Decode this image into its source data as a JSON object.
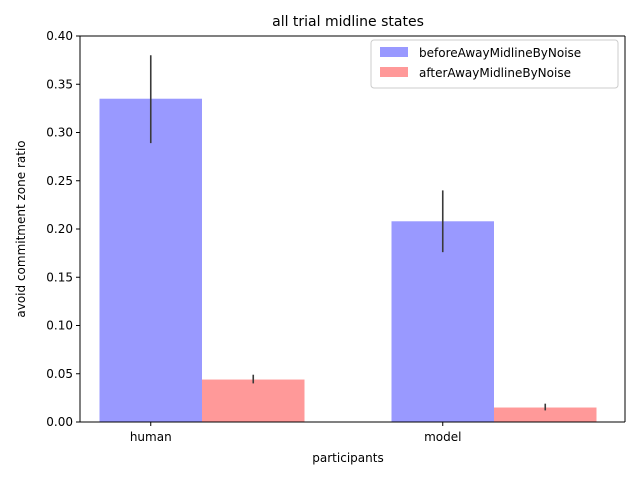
{
  "chart_data": {
    "type": "bar",
    "title": "all trial midline states",
    "xlabel": "participants",
    "ylabel": "avoid commitment zone ratio",
    "categories": [
      "human",
      "model"
    ],
    "ylim": [
      0,
      0.4
    ],
    "yticks": [
      0.0,
      0.05,
      0.1,
      0.15,
      0.2,
      0.25,
      0.3,
      0.35,
      0.4
    ],
    "ytick_labels": [
      "0.00",
      "0.05",
      "0.10",
      "0.15",
      "0.20",
      "0.25",
      "0.30",
      "0.35",
      "0.40"
    ],
    "grid": false,
    "legend_position": "top-right",
    "series": [
      {
        "name": "beforeAwayMidlineByNoise",
        "color": "#9999ff",
        "values": [
          0.335,
          0.208
        ],
        "error_low": [
          0.289,
          0.176
        ],
        "error_high": [
          0.38,
          0.24
        ]
      },
      {
        "name": "afterAwayMidlineByNoise",
        "color": "#ff9999",
        "values": [
          0.044,
          0.015
        ],
        "error_low": [
          0.04,
          0.012
        ],
        "error_high": [
          0.049,
          0.019
        ]
      }
    ]
  }
}
